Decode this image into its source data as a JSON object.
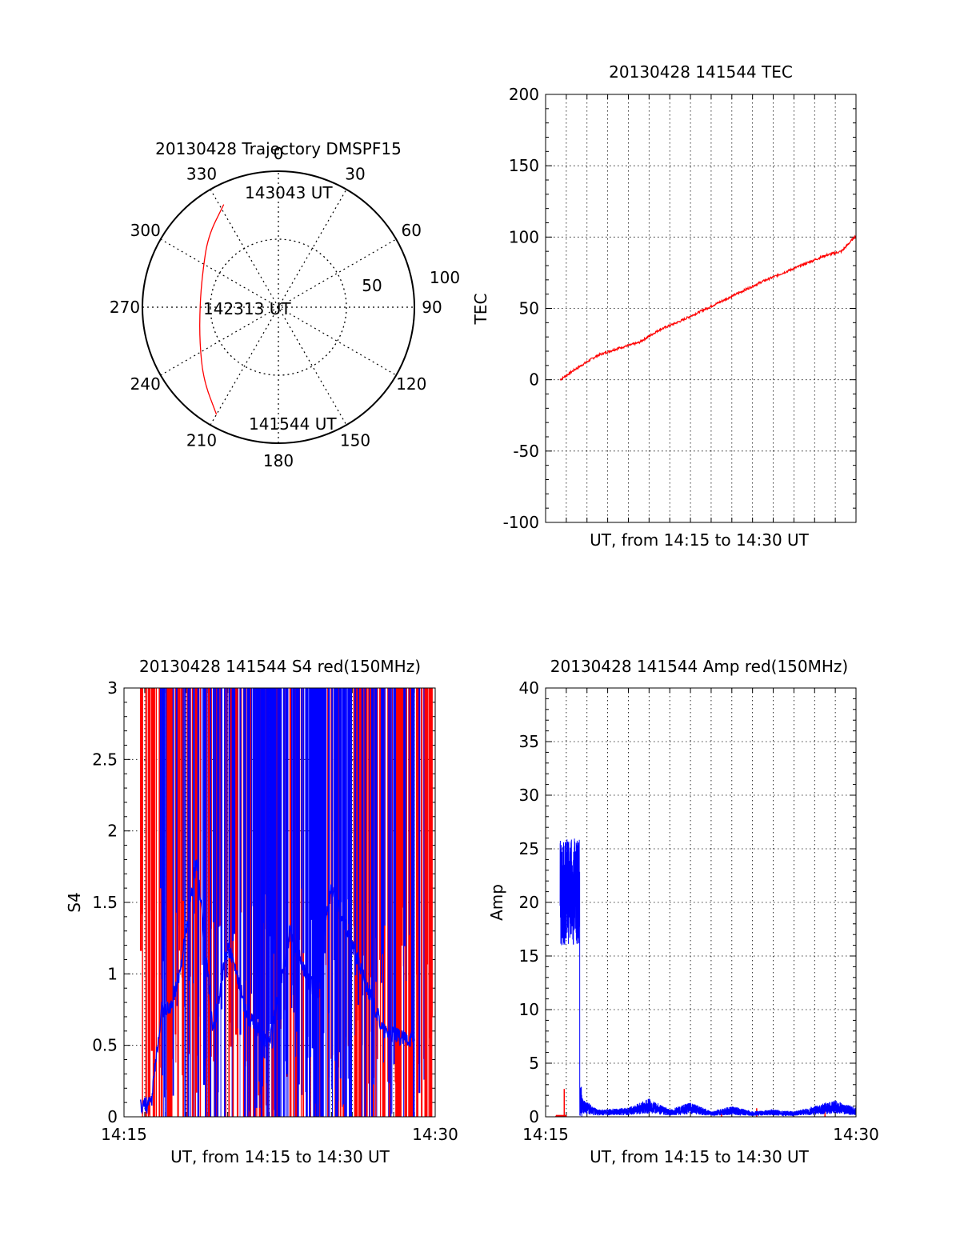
{
  "colors": {
    "red": "#ff0000",
    "blue": "#0000ff",
    "axis": "#000000",
    "grid": "#000000"
  },
  "chart_data": [
    {
      "type": "polar",
      "title": "20130428 Trajectory DMSPF15",
      "angle_labels": [
        "0",
        "30",
        "60",
        "90",
        "120",
        "150",
        "180",
        "210",
        "240",
        "270",
        "300",
        "330"
      ],
      "radius_labels": [
        "50",
        "100"
      ],
      "radius_max": 100,
      "grid": "dotted",
      "series": [
        {
          "color": "red",
          "points": [
            {
              "azimuth": 332,
              "elevation": 13
            },
            {
              "azimuth": 315,
              "elevation": 24
            },
            {
              "azimuth": 294,
              "elevation": 35
            },
            {
              "azimuth": 270,
              "elevation": 38
            },
            {
              "azimuth": 246,
              "elevation": 33
            },
            {
              "azimuth": 226,
              "elevation": 21
            },
            {
              "azimuth": 210,
              "elevation": 8
            }
          ]
        }
      ],
      "annotations": [
        {
          "text": "143043 UT",
          "azimuth": 332,
          "elevation": 13
        },
        {
          "text": "142313 UT",
          "azimuth": 270,
          "elevation": 38
        },
        {
          "text": "141544 UT",
          "azimuth": 210,
          "elevation": 8
        }
      ]
    },
    {
      "type": "line",
      "title": "20130428 141544 TEC",
      "xlabel": "UT, from 14:15 to 14:30 UT",
      "ylabel": "TEC",
      "xlim": [
        0,
        15
      ],
      "ylim": [
        -100,
        200
      ],
      "yticks": [
        "-100",
        "-50",
        "0",
        "50",
        "100",
        "150",
        "200"
      ],
      "xticks": [],
      "grid": true,
      "series": [
        {
          "color": "red",
          "x": [
            0.7,
            1.5,
            2.5,
            3.5,
            4.5,
            5.5,
            6.5,
            7.5,
            8.5,
            9.5,
            10.5,
            11.5,
            12.5,
            13.5,
            14.3,
            15.0
          ],
          "y": [
            0,
            8,
            17,
            22,
            26,
            35,
            41,
            48,
            55,
            62,
            69,
            75,
            81,
            87,
            90,
            101
          ]
        }
      ]
    },
    {
      "type": "line",
      "title": "20130428 141544 S4 red(150MHz)",
      "xlabel": "UT, from 14:15 to 14:30 UT",
      "ylabel": "S4",
      "xlim": [
        0,
        15
      ],
      "ylim": [
        0,
        3
      ],
      "yticks": [
        "0",
        "0.5",
        "1",
        "1.5",
        "2",
        "2.5",
        "3"
      ],
      "xticks": [
        "14:15",
        "14:30"
      ],
      "grid": true,
      "series": [
        {
          "color": "red",
          "note": "dense vertical saturation lines"
        },
        {
          "color": "blue",
          "x": [
            0.8,
            1.3,
            1.8,
            2.2,
            2.6,
            3.0,
            3.5,
            4.3,
            5.0,
            6.0,
            7.0,
            8.0,
            9.0,
            10.0,
            11.0,
            12.5,
            13.4,
            14.0
          ],
          "y": [
            0.08,
            0.08,
            0.75,
            0.75,
            0.95,
            1.3,
            1.8,
            0.6,
            1.2,
            0.7,
            0.5,
            1.3,
            0.9,
            1.6,
            1.2,
            0.6,
            0.55,
            0.55
          ]
        }
      ]
    },
    {
      "type": "line",
      "title": "20130428 141544 Amp red(150MHz)",
      "xlabel": "UT, from 14:15 to 14:30 UT",
      "ylabel": "Amp",
      "xlim": [
        0,
        15
      ],
      "ylim": [
        0,
        40
      ],
      "yticks": [
        "0",
        "5",
        "10",
        "15",
        "20",
        "25",
        "30",
        "35",
        "40"
      ],
      "xticks": [
        "14:15",
        "14:30"
      ],
      "grid": true,
      "series": [
        {
          "color": "blue",
          "x": [
            0.7,
            1.0,
            1.3,
            1.6,
            1.7,
            1.8,
            2.5,
            4.0,
            5.0,
            6.0,
            7.0,
            8.0,
            9.0,
            10.0,
            11.0,
            12.0,
            13.0,
            14.0,
            15.0
          ],
          "y": [
            20,
            22,
            19,
            21,
            1.2,
            1,
            0.4,
            0.5,
            1.0,
            0.4,
            0.8,
            0.3,
            0.6,
            0.3,
            0.4,
            0.3,
            0.6,
            0.9,
            0.5
          ]
        },
        {
          "color": "red",
          "x": [
            0.5,
            0.9,
            1.0,
            8.5,
            10.2,
            13.5
          ],
          "y": [
            0.1,
            2.6,
            0.1,
            0.3,
            0.8,
            0.6
          ]
        }
      ]
    }
  ]
}
